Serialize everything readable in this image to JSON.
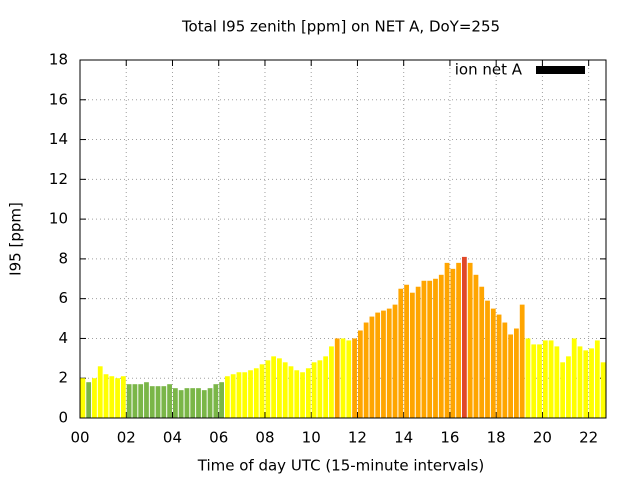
{
  "chart_data": {
    "type": "bar",
    "title": "Total I95 zenith [ppm] on NET A, DoY=255",
    "xlabel": "Time of day UTC (15-minute intervals)",
    "ylabel": "I95 [ppm]",
    "x": [
      0,
      0.25,
      0.5,
      0.75,
      1,
      1.25,
      1.5,
      1.75,
      2,
      2.25,
      2.5,
      2.75,
      3,
      3.25,
      3.5,
      3.75,
      4,
      4.25,
      4.5,
      4.75,
      5,
      5.25,
      5.5,
      5.75,
      6,
      6.25,
      6.5,
      6.75,
      7,
      7.25,
      7.5,
      7.75,
      8,
      8.25,
      8.5,
      8.75,
      9,
      9.25,
      9.5,
      9.75,
      10,
      10.25,
      10.5,
      10.75,
      11,
      11.25,
      11.5,
      11.75,
      12,
      12.25,
      12.5,
      12.75,
      13,
      13.25,
      13.5,
      13.75,
      14,
      14.25,
      14.5,
      14.75,
      15,
      15.25,
      15.5,
      15.75,
      16,
      16.25,
      16.5,
      16.75,
      17,
      17.25,
      17.5,
      17.75,
      18,
      18.25,
      18.5,
      18.75,
      19,
      19.25,
      19.5,
      19.75,
      20,
      20.25,
      20.5,
      20.75,
      21,
      21.25,
      21.5,
      21.75,
      22,
      22.25,
      22.5
    ],
    "series": [
      {
        "name": "ion net A",
        "color": "#000000",
        "values": [
          2.0,
          1.8,
          2.0,
          2.6,
          2.2,
          2.1,
          2.0,
          2.1,
          1.7,
          1.7,
          1.7,
          1.8,
          1.6,
          1.6,
          1.6,
          1.7,
          1.5,
          1.4,
          1.5,
          1.5,
          1.5,
          1.4,
          1.5,
          1.7,
          1.8,
          2.1,
          2.2,
          2.3,
          2.3,
          2.4,
          2.5,
          2.7,
          2.9,
          3.1,
          3.0,
          2.8,
          2.6,
          2.4,
          2.3,
          2.5,
          2.8,
          2.9,
          3.1,
          3.6,
          4.0,
          4.0,
          3.9,
          4.0,
          4.4,
          4.8,
          5.1,
          5.3,
          5.4,
          5.5,
          5.7,
          6.5,
          6.7,
          6.3,
          6.6,
          6.9,
          6.9,
          7.0,
          7.2,
          7.8,
          7.5,
          7.8,
          8.1,
          7.8,
          7.2,
          6.6,
          5.9,
          5.5,
          5.2,
          4.8,
          4.2,
          4.5,
          5.7,
          4.0,
          3.7,
          3.7,
          3.9,
          3.9,
          3.6,
          2.8,
          3.1,
          4.0,
          3.6,
          3.4,
          3.5,
          3.9,
          2.8
        ],
        "colors": [
          "#ffff00",
          "#7ab648",
          "#ffff00",
          "#ffff00",
          "#ffff00",
          "#ffff00",
          "#ffff00",
          "#ffff00",
          "#7ab648",
          "#7ab648",
          "#7ab648",
          "#7ab648",
          "#7ab648",
          "#7ab648",
          "#7ab648",
          "#7ab648",
          "#7ab648",
          "#7ab648",
          "#7ab648",
          "#7ab648",
          "#7ab648",
          "#7ab648",
          "#7ab648",
          "#7ab648",
          "#7ab648",
          "#ffff00",
          "#ffff00",
          "#ffff00",
          "#ffff00",
          "#ffff00",
          "#ffff00",
          "#ffff00",
          "#ffff00",
          "#ffff00",
          "#ffff00",
          "#ffff00",
          "#ffff00",
          "#ffff00",
          "#ffff00",
          "#ffff00",
          "#ffff00",
          "#ffff00",
          "#ffff00",
          "#ffff00",
          "#ffa500",
          "#ffff00",
          "#ffff00",
          "#ffa500",
          "#ffa500",
          "#ffa500",
          "#ffa500",
          "#ffa500",
          "#ffa500",
          "#ffa500",
          "#ffa500",
          "#ffa500",
          "#ffa500",
          "#ffa500",
          "#ffa500",
          "#ffa500",
          "#ffa500",
          "#ffa500",
          "#ffa500",
          "#ffa500",
          "#ffa500",
          "#ffa500",
          "#e04828",
          "#ffa500",
          "#ffa500",
          "#ffa500",
          "#ffa500",
          "#ffa500",
          "#ffa500",
          "#ffa500",
          "#ffa500",
          "#ffa500",
          "#ffa500",
          "#ffff00",
          "#ffff00",
          "#ffff00",
          "#ffff00",
          "#ffff00",
          "#ffff00",
          "#ffff00",
          "#ffff00",
          "#ffff00",
          "#ffff00",
          "#ffff00",
          "#ffff00",
          "#ffff00",
          "#ffff00"
        ]
      }
    ],
    "xlim": [
      0,
      22.75
    ],
    "xticks": [
      {
        "value": 0,
        "label": "00"
      },
      {
        "value": 2,
        "label": "02"
      },
      {
        "value": 4,
        "label": "04"
      },
      {
        "value": 6,
        "label": "06"
      },
      {
        "value": 8,
        "label": "08"
      },
      {
        "value": 10,
        "label": "10"
      },
      {
        "value": 12,
        "label": "12"
      },
      {
        "value": 14,
        "label": "14"
      },
      {
        "value": 16,
        "label": "16"
      },
      {
        "value": 18,
        "label": "18"
      },
      {
        "value": 20,
        "label": "20"
      },
      {
        "value": 22,
        "label": "22"
      }
    ],
    "ylim": [
      0,
      18
    ],
    "yticks": [
      0,
      2,
      4,
      6,
      8,
      10,
      12,
      14,
      16,
      18
    ],
    "grid": true,
    "legend": "top-right"
  }
}
